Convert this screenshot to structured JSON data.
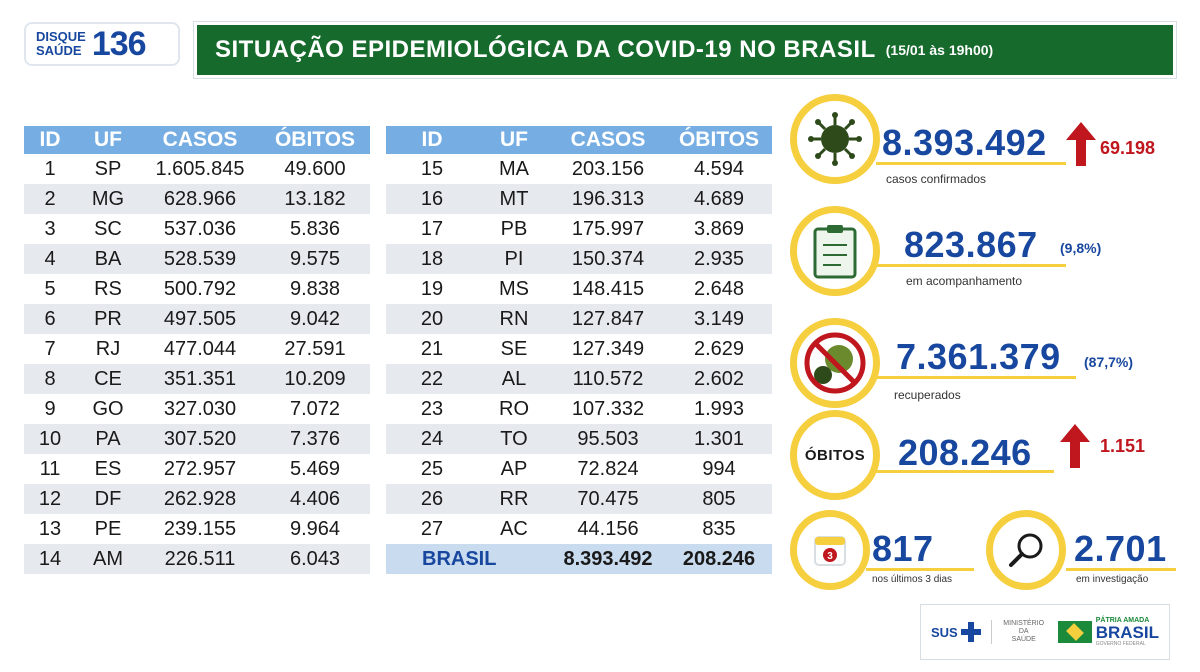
{
  "header": {
    "disque_line1": "DISQUE",
    "disque_line2": "SAÚDE",
    "disque_number": "136",
    "title": "SITUAÇÃO EPIDEMIOLÓGICA DA COVID-19 NO BRASIL",
    "date": "(15/01 às 19h00)"
  },
  "table": {
    "headers": [
      "ID",
      "UF",
      "CASOS",
      "ÓBITOS"
    ],
    "left_rows": [
      [
        "1",
        "SP",
        "1.605.845",
        "49.600"
      ],
      [
        "2",
        "MG",
        "628.966",
        "13.182"
      ],
      [
        "3",
        "SC",
        "537.036",
        "5.836"
      ],
      [
        "4",
        "BA",
        "528.539",
        "9.575"
      ],
      [
        "5",
        "RS",
        "500.792",
        "9.838"
      ],
      [
        "6",
        "PR",
        "497.505",
        "9.042"
      ],
      [
        "7",
        "RJ",
        "477.044",
        "27.591"
      ],
      [
        "8",
        "CE",
        "351.351",
        "10.209"
      ],
      [
        "9",
        "GO",
        "327.030",
        "7.072"
      ],
      [
        "10",
        "PA",
        "307.520",
        "7.376"
      ],
      [
        "11",
        "ES",
        "272.957",
        "5.469"
      ],
      [
        "12",
        "DF",
        "262.928",
        "4.406"
      ],
      [
        "13",
        "PE",
        "239.155",
        "9.964"
      ],
      [
        "14",
        "AM",
        "226.511",
        "6.043"
      ]
    ],
    "right_rows": [
      [
        "15",
        "MA",
        "203.156",
        "4.594"
      ],
      [
        "16",
        "MT",
        "196.313",
        "4.689"
      ],
      [
        "17",
        "PB",
        "175.997",
        "3.869"
      ],
      [
        "18",
        "PI",
        "150.374",
        "2.935"
      ],
      [
        "19",
        "MS",
        "148.415",
        "2.648"
      ],
      [
        "20",
        "RN",
        "127.847",
        "3.149"
      ],
      [
        "21",
        "SE",
        "127.349",
        "2.629"
      ],
      [
        "22",
        "AL",
        "110.572",
        "2.602"
      ],
      [
        "23",
        "RO",
        "107.332",
        "1.993"
      ],
      [
        "24",
        "TO",
        "95.503",
        "1.301"
      ],
      [
        "25",
        "AP",
        "72.824",
        "994"
      ],
      [
        "26",
        "RR",
        "70.475",
        "805"
      ],
      [
        "27",
        "AC",
        "44.156",
        "835"
      ]
    ],
    "total": {
      "label": "BRASIL",
      "casos": "8.393.492",
      "obitos": "208.246"
    }
  },
  "stats": {
    "confirmed": {
      "value": "8.393.492",
      "delta": "69.198",
      "caption": "casos confirmados"
    },
    "monitoring": {
      "value": "823.867",
      "pct": "(9,8%)",
      "caption": "em acompanhamento"
    },
    "recovered": {
      "value": "7.361.379",
      "pct": "(87,7%)",
      "caption": "recuperados"
    },
    "deaths": {
      "label": "ÓBITOS",
      "value": "208.246",
      "delta": "1.151"
    },
    "last3days": {
      "value": "817",
      "caption": "nos últimos 3 dias",
      "calendar_num": "3"
    },
    "investigation": {
      "value": "2.701",
      "caption": "em investigação"
    }
  },
  "logos": {
    "sus": "SUS",
    "ministerio_line1": "MINISTÉRIO DA",
    "ministerio_line2": "SAÚDE",
    "patria": "PÁTRIA AMADA",
    "brasil": "BRASIL",
    "governo": "GOVERNO FEDERAL"
  },
  "colors": {
    "header_green": "#166a2c",
    "table_header_blue": "#76aee3",
    "accent_yellow": "#f6cf3f",
    "number_blue": "#17479e",
    "delta_red": "#c0161d"
  }
}
